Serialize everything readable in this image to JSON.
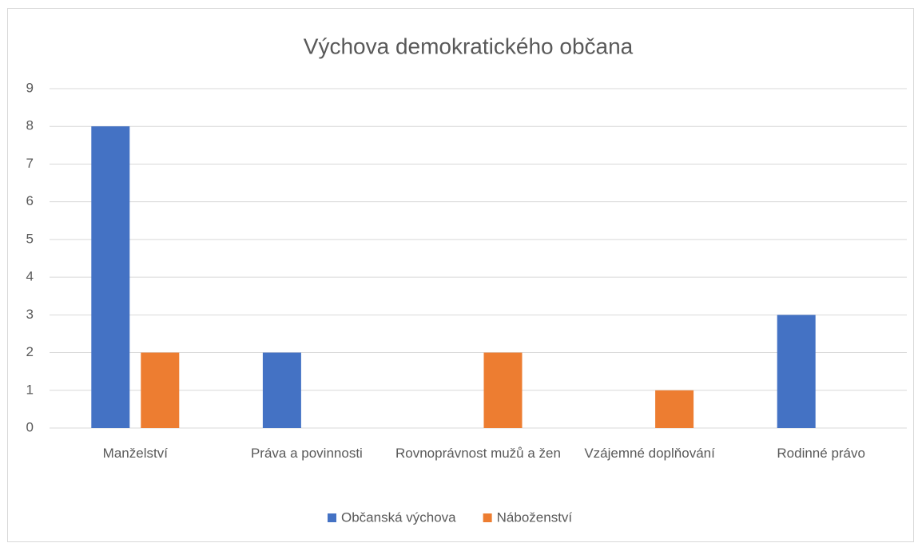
{
  "chart_data": {
    "type": "bar",
    "title": "Výchova demokratického občana",
    "categories": [
      "Manželství",
      "Práva a povinnosti",
      "Rovnoprávnost mužů a žen",
      "Vzájemné doplňování",
      "Rodinné právo"
    ],
    "series": [
      {
        "name": "Občanská výchova",
        "color": "#4472c4",
        "values": [
          8,
          2,
          0,
          0,
          3
        ]
      },
      {
        "name": "Náboženství",
        "color": "#ed7d31",
        "values": [
          2,
          0,
          2,
          1,
          0
        ]
      }
    ],
    "ylim": [
      0,
      9
    ],
    "yticks": [
      0,
      1,
      2,
      3,
      4,
      5,
      6,
      7,
      8,
      9
    ],
    "grid": true,
    "legend": "bottom"
  }
}
